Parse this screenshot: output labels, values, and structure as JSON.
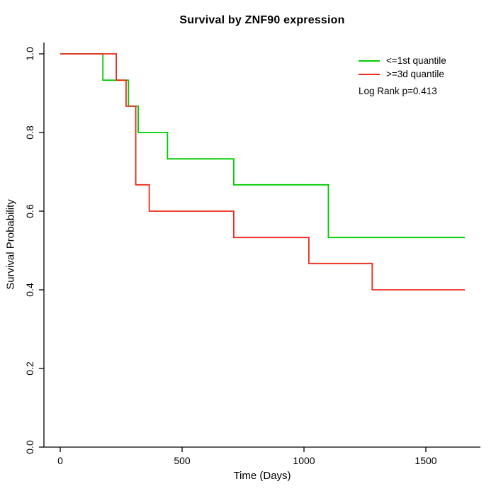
{
  "chart_data": {
    "type": "line",
    "subtype": "kaplan-meier-step",
    "title": "Survival by ZNF90 expression",
    "xlabel": "Time (Days)",
    "ylabel": "Survival Probability",
    "xlim": [
      0,
      1720
    ],
    "ylim": [
      0.0,
      1.0
    ],
    "x_ticks": [
      0,
      500,
      1000,
      1500
    ],
    "x_tick_labels": [
      "0",
      "500",
      "1000",
      "1500"
    ],
    "y_ticks": [
      0.0,
      0.2,
      0.4,
      0.6,
      0.8,
      1.0
    ],
    "y_tick_labels": [
      "0.0",
      "0.2",
      "0.4",
      "0.6",
      "0.8",
      "1.0"
    ],
    "grid": false,
    "legend_position": "top-right",
    "annotation": "Log Rank p=0.413",
    "axis_color": "#000000",
    "series": [
      {
        "name": "<=1st quantile",
        "color": "#00cc00",
        "end_time": 1660,
        "steps": [
          [
            0,
            1.0
          ],
          [
            175,
            0.933
          ],
          [
            280,
            0.867
          ],
          [
            320,
            0.8
          ],
          [
            440,
            0.733
          ],
          [
            712,
            0.667
          ],
          [
            1100,
            0.533
          ]
        ]
      },
      {
        "name": ">=3d quantile",
        "color": "#ee2a1c",
        "end_time": 1660,
        "steps": [
          [
            0,
            1.0
          ],
          [
            230,
            0.933
          ],
          [
            270,
            0.867
          ],
          [
            310,
            0.667
          ],
          [
            365,
            0.6
          ],
          [
            712,
            0.533
          ],
          [
            1020,
            0.467
          ],
          [
            1280,
            0.4
          ]
        ]
      }
    ]
  }
}
